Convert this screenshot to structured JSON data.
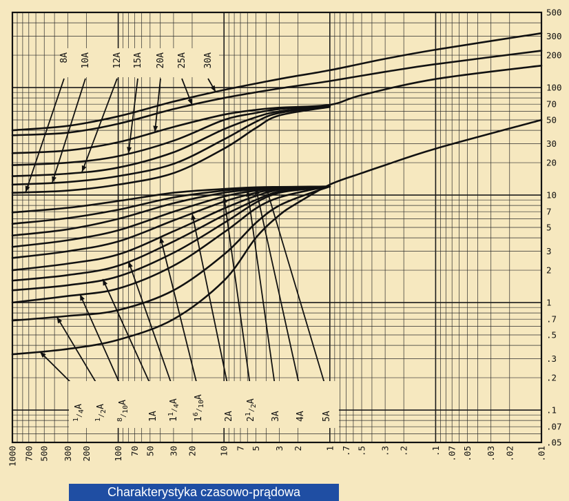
{
  "caption": "Charakterystyka czasowo-prądowa",
  "chart_data": {
    "type": "line",
    "title": "Charakterystyka czasowo-prądowa",
    "x_scale": "log",
    "y_scale": "log",
    "x_reversed": true,
    "xlim": [
      1000,
      0.01
    ],
    "ylim": [
      0.05,
      500
    ],
    "x_ticks": [
      1000,
      700,
      500,
      300,
      200,
      100,
      70,
      50,
      30,
      20,
      10,
      7,
      5,
      3,
      2,
      1,
      0.7,
      0.5,
      0.3,
      0.2,
      0.1,
      0.07,
      0.05,
      0.03,
      0.02,
      0.01
    ],
    "x_tick_labels": [
      "1000",
      "700",
      "500",
      "300",
      "200",
      "100",
      "70",
      "50",
      "30",
      "20",
      "10",
      "7",
      "5",
      "3",
      "2",
      "1",
      ".7",
      ".5",
      ".3",
      ".2",
      ".1",
      ".07",
      ".05",
      ".03",
      ".02",
      ".01"
    ],
    "y_ticks": [
      500,
      300,
      200,
      100,
      70,
      50,
      30,
      20,
      10,
      7,
      5,
      3,
      2,
      1,
      0.7,
      0.5,
      0.3,
      0.2,
      0.1,
      0.07,
      0.05
    ],
    "y_tick_labels": [
      "500",
      "300",
      "200",
      "100",
      "70",
      "50",
      "30",
      "20",
      "10",
      "7",
      "5",
      "3",
      "2",
      "1",
      ".7",
      ".5",
      ".3",
      ".2",
      ".1",
      ".07",
      ".05"
    ],
    "grid": true,
    "series": [
      {
        "name": "1/4A",
        "label": {
          "whole": "",
          "num": "1",
          "den": "4",
          "unit": "A"
        },
        "points": [
          [
            1000,
            0.33
          ],
          [
            300,
            0.37
          ],
          [
            100,
            0.45
          ],
          [
            30,
            0.7
          ],
          [
            10,
            1.6
          ],
          [
            5,
            4
          ],
          [
            3,
            6.5
          ],
          [
            2,
            8.5
          ],
          [
            1,
            12.5
          ],
          [
            0.5,
            16
          ],
          [
            0.3,
            19
          ],
          [
            0.1,
            27
          ],
          [
            0.01,
            50
          ]
        ]
      },
      {
        "name": "1/2A",
        "label": {
          "whole": "",
          "num": "1",
          "den": "2",
          "unit": "A"
        },
        "points": [
          [
            1000,
            0.68
          ],
          [
            300,
            0.75
          ],
          [
            100,
            0.85
          ],
          [
            30,
            1.3
          ],
          [
            10,
            2.8
          ],
          [
            5,
            5.5
          ],
          [
            3,
            8
          ],
          [
            1.5,
            10.5
          ],
          [
            1,
            12
          ]
        ]
      },
      {
        "name": "8/10A",
        "label": {
          "whole": "",
          "num": "8",
          "den": "10",
          "unit": "A"
        },
        "points": [
          [
            1000,
            1.0
          ],
          [
            300,
            1.15
          ],
          [
            100,
            1.35
          ],
          [
            30,
            2.2
          ],
          [
            10,
            4.5
          ],
          [
            5,
            7.5
          ],
          [
            3,
            9.5
          ],
          [
            1.5,
            11.2
          ],
          [
            1,
            12
          ]
        ]
      },
      {
        "name": "1A",
        "label": {
          "whole": "1",
          "num": "",
          "den": "",
          "unit": "A"
        },
        "points": [
          [
            1000,
            1.3
          ],
          [
            300,
            1.45
          ],
          [
            100,
            1.75
          ],
          [
            30,
            2.9
          ],
          [
            10,
            5.5
          ],
          [
            5,
            8.5
          ],
          [
            3,
            10.5
          ],
          [
            1.5,
            11.5
          ],
          [
            1,
            12
          ]
        ]
      },
      {
        "name": "1 1/4A",
        "label": {
          "whole": "1",
          "num": "1",
          "den": "4",
          "unit": "A"
        },
        "points": [
          [
            1000,
            1.6
          ],
          [
            300,
            1.8
          ],
          [
            100,
            2.2
          ],
          [
            30,
            3.7
          ],
          [
            10,
            6.5
          ],
          [
            5,
            9
          ],
          [
            3,
            10.8
          ],
          [
            1.5,
            11.6
          ],
          [
            1,
            12
          ]
        ]
      },
      {
        "name": "1 6/10A",
        "label": {
          "whole": "1",
          "num": "6",
          "den": "10",
          "unit": "A"
        },
        "points": [
          [
            1000,
            2.0
          ],
          [
            300,
            2.3
          ],
          [
            100,
            2.8
          ],
          [
            30,
            4.6
          ],
          [
            10,
            7.5
          ],
          [
            5,
            9.8
          ],
          [
            3,
            11.2
          ],
          [
            1.5,
            11.8
          ],
          [
            1,
            12
          ]
        ]
      },
      {
        "name": "2A",
        "label": {
          "whole": "2",
          "num": "",
          "den": "",
          "unit": "A"
        },
        "points": [
          [
            1000,
            2.6
          ],
          [
            300,
            3.0
          ],
          [
            100,
            3.7
          ],
          [
            30,
            5.8
          ],
          [
            10,
            8.7
          ],
          [
            5,
            10.5
          ],
          [
            3,
            11.4
          ],
          [
            1.5,
            11.9
          ],
          [
            1,
            12
          ]
        ]
      },
      {
        "name": "2 1/2A",
        "label": {
          "whole": "2",
          "num": "1",
          "den": "2",
          "unit": "A"
        },
        "points": [
          [
            1000,
            3.3
          ],
          [
            300,
            3.8
          ],
          [
            100,
            4.7
          ],
          [
            30,
            7
          ],
          [
            10,
            9.7
          ],
          [
            5,
            11
          ],
          [
            3,
            11.6
          ],
          [
            1.5,
            11.95
          ],
          [
            1,
            12
          ]
        ]
      },
      {
        "name": "3A",
        "label": {
          "whole": "3",
          "num": "",
          "den": "",
          "unit": "A"
        },
        "points": [
          [
            1000,
            4.2
          ],
          [
            300,
            4.8
          ],
          [
            100,
            6.0
          ],
          [
            30,
            8.4
          ],
          [
            10,
            10.5
          ],
          [
            5,
            11.3
          ],
          [
            3,
            11.7
          ],
          [
            1.5,
            11.95
          ],
          [
            1,
            12
          ]
        ]
      },
      {
        "name": "4A",
        "label": {
          "whole": "4",
          "num": "",
          "den": "",
          "unit": "A"
        },
        "points": [
          [
            1000,
            5.4
          ],
          [
            300,
            6.1
          ],
          [
            100,
            7.3
          ],
          [
            30,
            9.5
          ],
          [
            10,
            11
          ],
          [
            5,
            11.6
          ],
          [
            3,
            11.85
          ],
          [
            1,
            12
          ]
        ]
      },
      {
        "name": "5A",
        "label": {
          "whole": "5",
          "num": "",
          "den": "",
          "unit": "A"
        },
        "points": [
          [
            1000,
            6.9
          ],
          [
            300,
            7.6
          ],
          [
            100,
            8.8
          ],
          [
            30,
            10.5
          ],
          [
            10,
            11.4
          ],
          [
            5,
            11.8
          ],
          [
            3,
            11.9
          ],
          [
            1,
            12
          ]
        ]
      },
      {
        "name": "8A",
        "label": {
          "whole": "8",
          "num": "",
          "den": "",
          "unit": "A"
        },
        "points": [
          [
            1000,
            10.5
          ],
          [
            300,
            11
          ],
          [
            100,
            12.5
          ],
          [
            30,
            16
          ],
          [
            10,
            27
          ],
          [
            5,
            42
          ],
          [
            3,
            55
          ],
          [
            1,
            66
          ]
        ]
      },
      {
        "name": "10A",
        "label": {
          "whole": "10",
          "num": "",
          "den": "",
          "unit": "A"
        },
        "points": [
          [
            1000,
            12.5
          ],
          [
            300,
            13.2
          ],
          [
            100,
            15
          ],
          [
            30,
            19.5
          ],
          [
            10,
            33
          ],
          [
            5,
            48
          ],
          [
            3,
            58
          ],
          [
            1,
            67
          ]
        ]
      },
      {
        "name": "12A",
        "label": {
          "whole": "12",
          "num": "",
          "den": "",
          "unit": "A"
        },
        "points": [
          [
            1000,
            15
          ],
          [
            300,
            15.8
          ],
          [
            100,
            18
          ],
          [
            30,
            25
          ],
          [
            10,
            41
          ],
          [
            5,
            53
          ],
          [
            3,
            60
          ],
          [
            1,
            68
          ]
        ]
      },
      {
        "name": "15A",
        "label": {
          "whole": "15",
          "num": "",
          "den": "",
          "unit": "A"
        },
        "points": [
          [
            1000,
            19
          ],
          [
            300,
            20
          ],
          [
            100,
            23
          ],
          [
            30,
            32
          ],
          [
            10,
            50
          ],
          [
            5,
            58
          ],
          [
            3,
            63
          ],
          [
            1,
            68
          ]
        ]
      },
      {
        "name": "20A",
        "label": {
          "whole": "20",
          "num": "",
          "den": "",
          "unit": "A"
        },
        "points": [
          [
            1000,
            24.5
          ],
          [
            300,
            26
          ],
          [
            100,
            31
          ],
          [
            30,
            43
          ],
          [
            10,
            56
          ],
          [
            5,
            62
          ],
          [
            3,
            65
          ],
          [
            1,
            69
          ],
          [
            0.5,
            85
          ],
          [
            0.1,
            120
          ],
          [
            0.01,
            160
          ]
        ]
      },
      {
        "name": "25A",
        "label": {
          "whole": "25",
          "num": "",
          "den": "",
          "unit": "A"
        },
        "points": [
          [
            1000,
            36
          ],
          [
            300,
            38
          ],
          [
            100,
            46
          ],
          [
            30,
            63
          ],
          [
            10,
            80
          ],
          [
            3,
            98
          ],
          [
            1,
            115
          ],
          [
            0.3,
            140
          ],
          [
            0.1,
            165
          ],
          [
            0.01,
            220
          ]
        ]
      },
      {
        "name": "30A",
        "label": {
          "whole": "30",
          "num": "",
          "den": "",
          "unit": "A"
        },
        "points": [
          [
            1000,
            40
          ],
          [
            300,
            44
          ],
          [
            100,
            54
          ],
          [
            30,
            74
          ],
          [
            10,
            95
          ],
          [
            3,
            120
          ],
          [
            1,
            145
          ],
          [
            0.3,
            185
          ],
          [
            0.1,
            225
          ],
          [
            0.01,
            320
          ]
        ]
      }
    ]
  }
}
